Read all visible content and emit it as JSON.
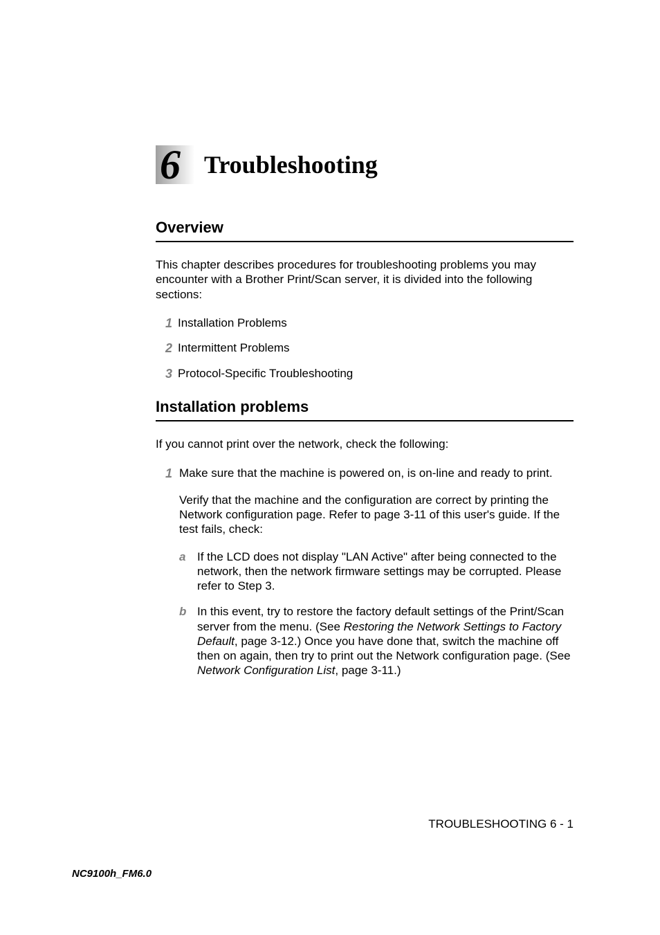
{
  "chapter": {
    "number": "6",
    "title": "Troubleshooting"
  },
  "section1": {
    "heading": "Overview",
    "intro": "This chapter describes procedures for troubleshooting problems you may encounter with a Brother Print/Scan server, it is divided into the following sections:",
    "items": [
      {
        "num": "1",
        "text": "Installation Problems"
      },
      {
        "num": "2",
        "text": "Intermittent Problems"
      },
      {
        "num": "3",
        "text": "Protocol-Specific Troubleshooting"
      }
    ]
  },
  "section2": {
    "heading": "Installation problems",
    "intro": "If you cannot print over the network, check the following:",
    "steps": [
      {
        "num": "1",
        "para1": "Make sure that the machine is powered on, is on-line and ready to print.",
        "para2": "Verify that the machine and the configuration are correct by printing the Network configuration page. Refer to page 3-11 of this user's guide. If the test fails, check:",
        "subs": [
          {
            "letter": "a",
            "text": "If the LCD does not display \"LAN Active\" after being connected to the network, then the network firmware settings may be corrupted. Please refer to Step 3."
          },
          {
            "letter": "b",
            "pre": "In this event, try to restore the factory default settings of the Print/Scan server from the menu. (See ",
            "link1": "Restoring the Network Settings to Factory Default",
            "mid1": ", page 3-12.) Once you have done that, switch the machine off then on again, then try to print out the Network configuration page. (See ",
            "link2": "Network Configuration List",
            "post": ", page 3-11.)"
          }
        ]
      }
    ]
  },
  "footer": "TROUBLESHOOTING 6 - 1",
  "docId": "NC9100h_FM6.0",
  "colors": {
    "text": "#000000",
    "list_num": "#808080",
    "background": "#ffffff",
    "rule": "#000000"
  },
  "typography": {
    "body_fontsize": 17,
    "heading_fontsize": 22,
    "chapter_title_fontsize": 36,
    "chapter_num_fontsize": 60,
    "footer_fontsize": 17,
    "docid_fontsize": 15
  }
}
